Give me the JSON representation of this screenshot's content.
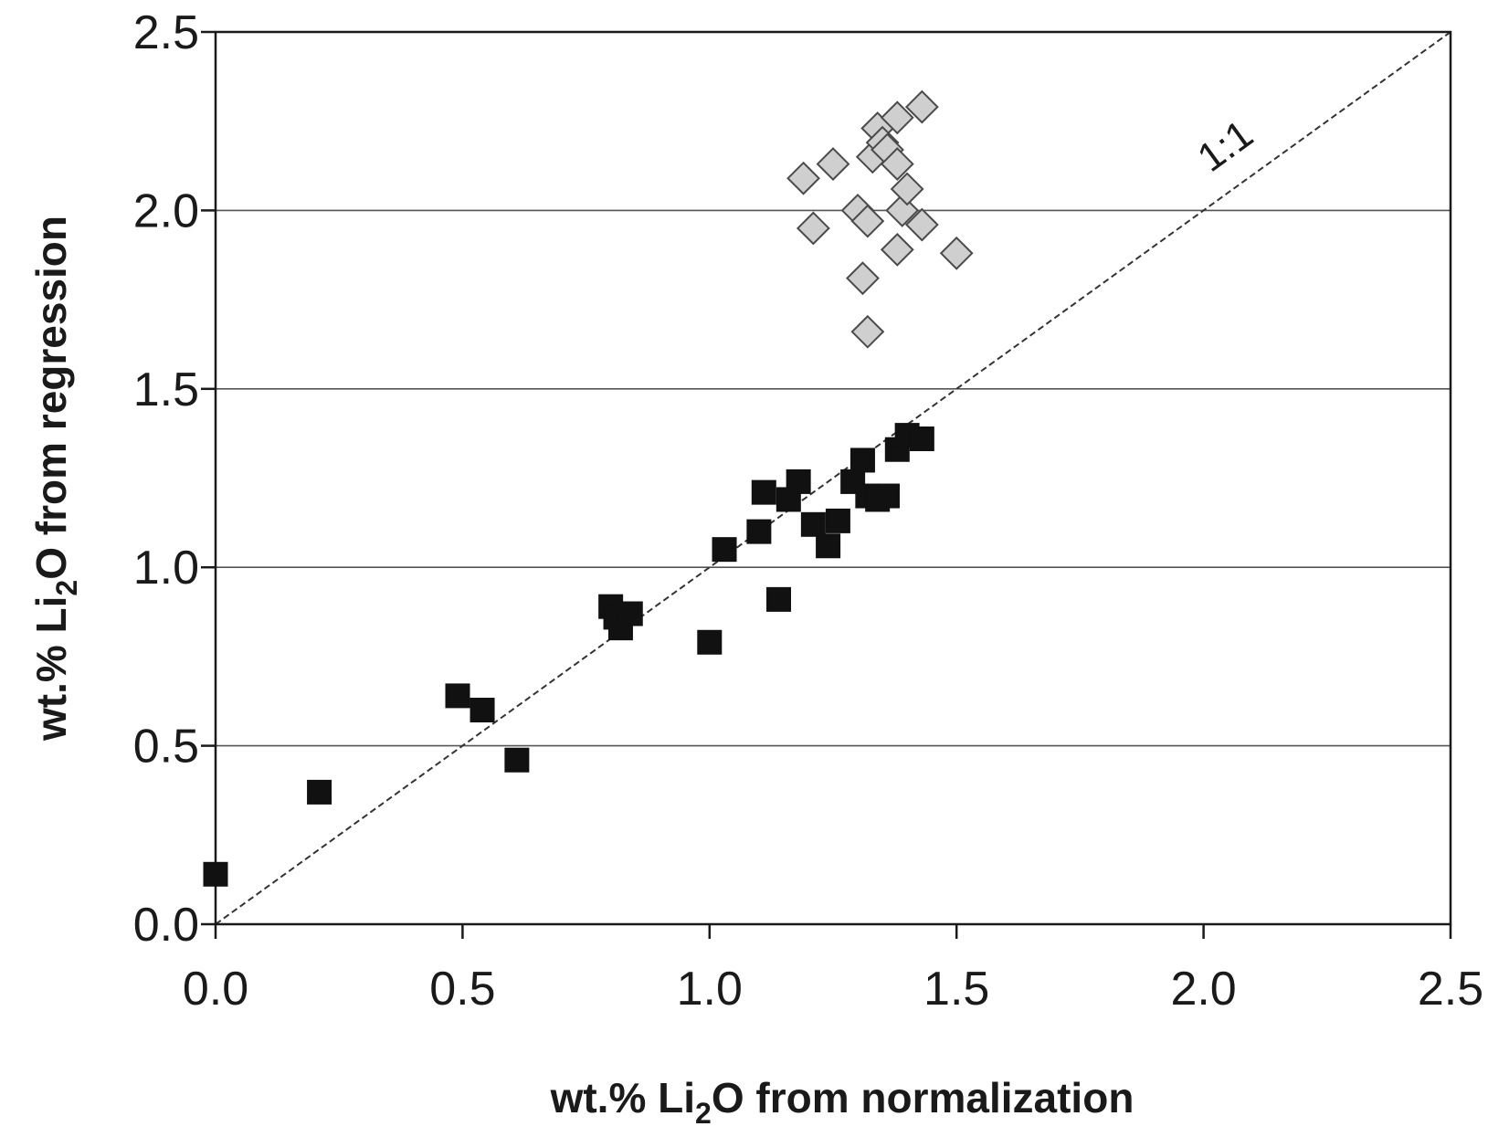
{
  "chart_data": {
    "type": "scatter",
    "title": "",
    "xlabel": {
      "prefix": "wt.% Li",
      "sub": "2",
      "suffix": "O from normalization"
    },
    "ylabel": {
      "prefix": "wt.% Li",
      "sub": "2",
      "suffix": "O from regression"
    },
    "xlim": [
      0,
      2.5
    ],
    "ylim": [
      0,
      2.5
    ],
    "xticks": [
      0,
      0.5,
      1.0,
      1.5,
      2.0,
      2.5
    ],
    "yticks": [
      0,
      0.5,
      1.0,
      1.5,
      2.0,
      2.5
    ],
    "xtick_labels": [
      "0.0",
      "0.5",
      "1.0",
      "1.5",
      "2.0",
      "2.5"
    ],
    "ytick_labels": [
      "0.0",
      "0.5",
      "1.0",
      "1.5",
      "2.0",
      "2.5"
    ],
    "horizontal_gridlines": true,
    "reference_line": {
      "label": "1:1",
      "from": [
        0,
        0
      ],
      "to": [
        2.5,
        2.5
      ],
      "color": "#333333"
    },
    "series": [
      {
        "name": "squares",
        "marker": "square",
        "fill": "#111111",
        "stroke": "#111111",
        "points": [
          [
            0.0,
            0.14
          ],
          [
            0.21,
            0.37
          ],
          [
            0.49,
            0.64
          ],
          [
            0.54,
            0.6
          ],
          [
            0.61,
            0.46
          ],
          [
            0.8,
            0.89
          ],
          [
            0.81,
            0.86
          ],
          [
            0.82,
            0.83
          ],
          [
            0.84,
            0.87
          ],
          [
            1.0,
            0.79
          ],
          [
            1.03,
            1.05
          ],
          [
            1.1,
            1.1
          ],
          [
            1.11,
            1.21
          ],
          [
            1.14,
            0.91
          ],
          [
            1.16,
            1.19
          ],
          [
            1.18,
            1.24
          ],
          [
            1.21,
            1.12
          ],
          [
            1.24,
            1.06
          ],
          [
            1.26,
            1.13
          ],
          [
            1.29,
            1.24
          ],
          [
            1.31,
            1.3
          ],
          [
            1.32,
            1.2
          ],
          [
            1.34,
            1.19
          ],
          [
            1.36,
            1.2
          ],
          [
            1.38,
            1.33
          ],
          [
            1.4,
            1.37
          ],
          [
            1.43,
            1.36
          ]
        ]
      },
      {
        "name": "diamonds",
        "marker": "diamond",
        "fill": "#cfcfcf",
        "stroke": "#4a4a4a",
        "points": [
          [
            1.19,
            2.09
          ],
          [
            1.21,
            1.95
          ],
          [
            1.25,
            2.13
          ],
          [
            1.3,
            2.0
          ],
          [
            1.31,
            1.81
          ],
          [
            1.32,
            1.66
          ],
          [
            1.32,
            1.97
          ],
          [
            1.33,
            2.15
          ],
          [
            1.34,
            2.23
          ],
          [
            1.35,
            2.19
          ],
          [
            1.36,
            2.17
          ],
          [
            1.38,
            2.13
          ],
          [
            1.38,
            1.89
          ],
          [
            1.38,
            2.26
          ],
          [
            1.39,
            2.0
          ],
          [
            1.4,
            2.06
          ],
          [
            1.43,
            2.29
          ],
          [
            1.43,
            1.96
          ],
          [
            1.5,
            1.88
          ]
        ]
      }
    ]
  }
}
